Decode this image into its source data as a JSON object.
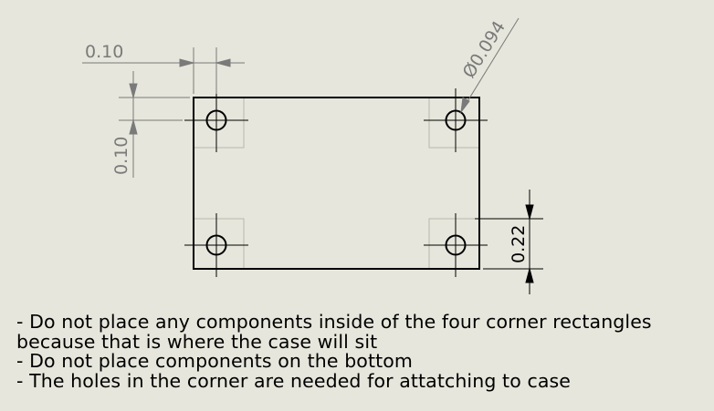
{
  "drawing": {
    "dimensions": {
      "horizontal_edge_offset": "0.10",
      "vertical_edge_offset": "0.10",
      "hole_diameter": "Ø0.094",
      "hole_offset_from_bottom": "0.22"
    },
    "colors": {
      "background": "#e6e6dc",
      "outline": "#000000",
      "dimension_gray": "#7a7a7a",
      "keepout_gray": "#b8b8b0"
    }
  },
  "notes": [
    "- Do not place any components inside of the four corner rectangles",
    "because that is where the case will sit",
    "- Do not place components on the bottom",
    "- The holes in the corner are needed for attatching to case"
  ]
}
